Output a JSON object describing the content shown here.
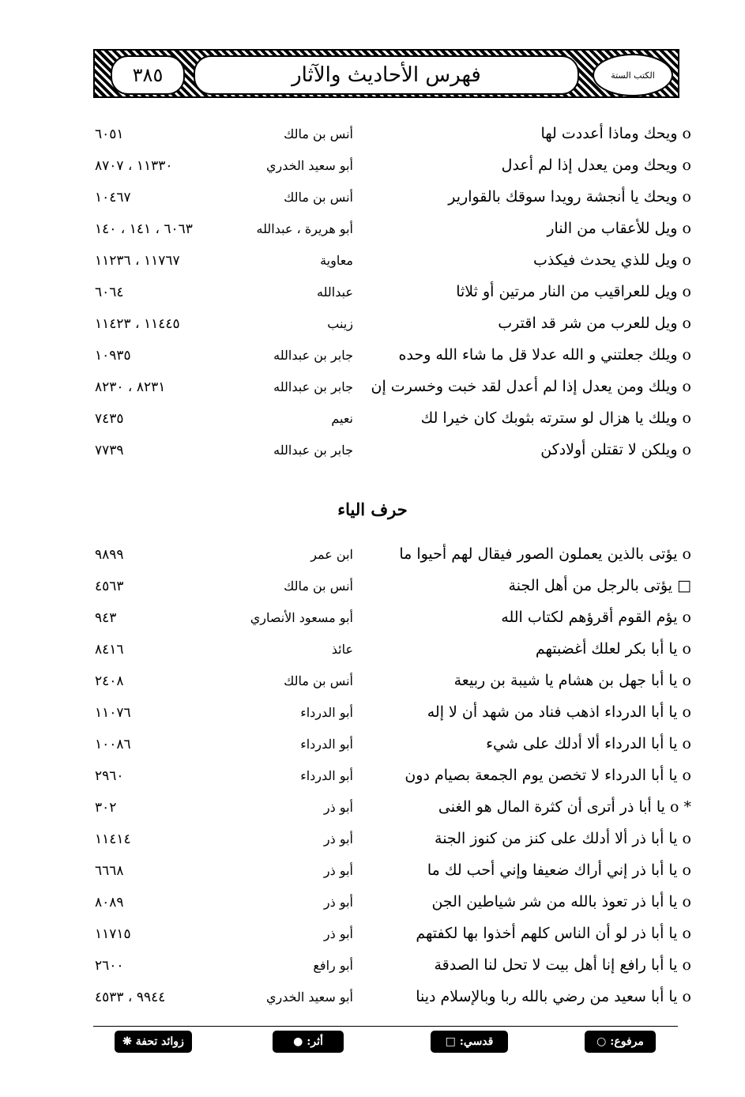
{
  "header": {
    "title": "فهرس الأحاديث والآثار",
    "page_number": "٣٨٥",
    "emblem_text": "الكتب الستة"
  },
  "section1": [
    {
      "marker": "o",
      "text": "ويحك وماذا أعددت لها",
      "narrator": "أنس بن مالك",
      "numbers": "٦٠٥١"
    },
    {
      "marker": "o",
      "text": "ويحك ومن يعدل إذا لم أعدل",
      "narrator": "أبو سعيد الخدري",
      "numbers": "١١٣٣٠ ، ٨٧٠٧"
    },
    {
      "marker": "o",
      "text": "ويحك يا أنجشة رويدا سوقك بالقوارير",
      "narrator": "أنس بن مالك",
      "numbers": "١٠٤٦٧"
    },
    {
      "marker": "o",
      "text": "ويل للأعقاب من النار",
      "narrator": "أبو هريرة ، عبدالله",
      "numbers": "٦٠٦٣ ، ١٤١ ، ١٤٠"
    },
    {
      "marker": "o",
      "text": "ويل للذي يحدث فيكذب",
      "narrator": "معاوية",
      "numbers": "١١٧٦٧ ، ١١٢٣٦"
    },
    {
      "marker": "o",
      "text": "ويل للعراقيب من النار مرتين أو ثلاثا",
      "narrator": "عبدالله",
      "numbers": "٦٠٦٤"
    },
    {
      "marker": "o",
      "text": "ويل للعرب من شر قد اقترب",
      "narrator": "زينب",
      "numbers": "١١٤٤٥ ، ١١٤٢٣"
    },
    {
      "marker": "o",
      "text": "ويلك جعلتني و الله عدلا قل ما شاء الله وحده",
      "narrator": "جابر بن عبدالله",
      "numbers": "١٠٩٣٥"
    },
    {
      "marker": "o",
      "text": "ويلك ومن يعدل إذا لم أعدل لقد خبت وخسرت إن",
      "narrator": "جابر بن عبدالله",
      "numbers": "٨٢٣١ ، ٨٢٣٠"
    },
    {
      "marker": "o",
      "text": "ويلك يا هزال لو سترته بثوبك كان خيرا لك",
      "narrator": "نعيم",
      "numbers": "٧٤٣٥"
    },
    {
      "marker": "o",
      "text": "ويلكن لا تقتلن أولادكن",
      "narrator": "جابر بن عبدالله",
      "numbers": "٧٧٣٩"
    }
  ],
  "section2": {
    "heading": "حرف الياء",
    "rows": [
      {
        "marker": "o",
        "text": "يؤتى بالذين يعملون الصور فيقال لهم أحيوا ما",
        "narrator": "ابن عمر",
        "numbers": "٩٨٩٩"
      },
      {
        "marker": "□",
        "text": "يؤتى بالرجل من أهل الجنة",
        "narrator": "أنس بن مالك",
        "numbers": "٤٥٦٣"
      },
      {
        "marker": "o",
        "text": "يؤم القوم أقرؤهم لكتاب الله",
        "narrator": "أبو مسعود الأنصاري",
        "numbers": "٩٤٣"
      },
      {
        "marker": "o",
        "text": "يا أبا بكر لعلك أغضبتهم",
        "narrator": "عائذ",
        "numbers": "٨٤١٦"
      },
      {
        "marker": "o",
        "text": "يا أبا جهل بن هشام يا شيبة بن ربيعة",
        "narrator": "أنس بن مالك",
        "numbers": "٢٤٠٨"
      },
      {
        "marker": "o",
        "text": "يا أبا الدرداء اذهب فناد من شهد أن لا إله",
        "narrator": "أبو الدرداء",
        "numbers": "١١٠٧٦"
      },
      {
        "marker": "o",
        "text": "يا أبا الدرداء ألا أدلك على شيء",
        "narrator": "أبو الدرداء",
        "numbers": "١٠٠٨٦"
      },
      {
        "marker": "o",
        "text": "يا أبا الدرداء لا تخصن يوم الجمعة بصيام دون",
        "narrator": "أبو الدرداء",
        "numbers": "٢٩٦٠"
      },
      {
        "marker": "* o",
        "text": "يا أبا ذر أترى أن كثرة المال هو الغنى",
        "narrator": "أبو ذر",
        "numbers": "٣٠٢"
      },
      {
        "marker": "o",
        "text": "يا أبا ذر ألا أدلك على كنز من كنوز الجنة",
        "narrator": "أبو ذر",
        "numbers": "١١٤١٤"
      },
      {
        "marker": "o",
        "text": "يا أبا ذر إني أراك ضعيفا وإني أحب لك ما",
        "narrator": "أبو ذر",
        "numbers": "٦٦٦٨"
      },
      {
        "marker": "o",
        "text": "يا أبا ذر تعوذ بالله من شر شياطين الجن",
        "narrator": "أبو ذر",
        "numbers": "٨٠٨٩"
      },
      {
        "marker": "o",
        "text": "يا أبا ذر لو أن الناس كلهم أخذوا بها لكفتهم",
        "narrator": "أبو ذر",
        "numbers": "١١٧١٥"
      },
      {
        "marker": "o",
        "text": "يا أبا رافع إنا أهل بيت لا تحل لنا الصدقة",
        "narrator": "أبو رافع",
        "numbers": "٢٦٠٠"
      },
      {
        "marker": "o",
        "text": "يا أبا سعيد من رضي بالله ربا وبالإسلام دينا",
        "narrator": "أبو سعيد الخدري",
        "numbers": "٩٩٤٤ ، ٤٥٣٣"
      }
    ]
  },
  "footer_legend": [
    "مرفوع: ○",
    "قدسي: □",
    "أثر: ●",
    "زوائد تحفة ❋"
  ]
}
